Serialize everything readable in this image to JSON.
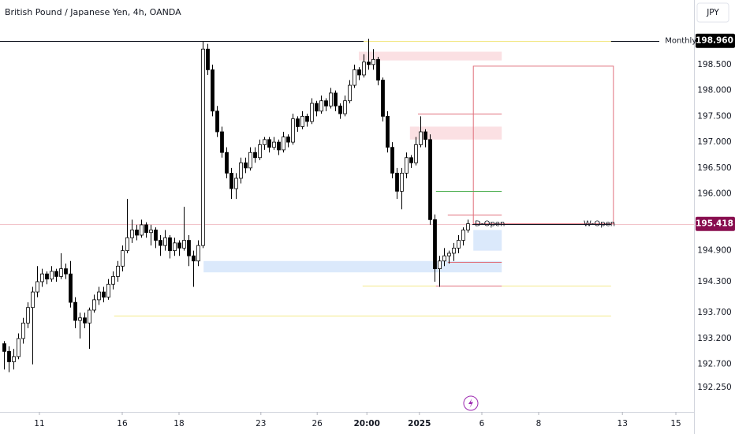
{
  "chart_data": {
    "type": "candlestick",
    "title": "British Pound / Japanese Yen, 4h, OANDA",
    "currency": "JPY",
    "up_color": "#ffffff",
    "down_color": "#000000",
    "wick_color": "#000000",
    "xlim": [
      -0.83,
      145.83
    ],
    "ylim": [
      191.78,
      199.75
    ],
    "xticks": [
      {
        "value": 7.5,
        "label": "11"
      },
      {
        "value": 25,
        "label": "16"
      },
      {
        "value": 37,
        "label": "18"
      },
      {
        "value": 54.3,
        "label": "23"
      },
      {
        "value": 66.2,
        "label": "26"
      },
      {
        "value": 76.7,
        "label": "20:00"
      },
      {
        "value": 87.8,
        "label": "2025"
      },
      {
        "value": 101,
        "label": "6"
      },
      {
        "value": 113,
        "label": "8"
      },
      {
        "value": 130.7,
        "label": "13"
      },
      {
        "value": 142,
        "label": "15"
      }
    ],
    "yticks": [
      {
        "value": 198.5,
        "label": "198.500"
      },
      {
        "value": 198,
        "label": "198.000"
      },
      {
        "value": 197.5,
        "label": "197.500"
      },
      {
        "value": 197,
        "label": "197.000"
      },
      {
        "value": 196.5,
        "label": "196.500"
      },
      {
        "value": 196,
        "label": "196.000"
      },
      {
        "value": 194.9,
        "label": "194.900"
      },
      {
        "value": 194.3,
        "label": "194.300"
      },
      {
        "value": 193.7,
        "label": "193.700"
      },
      {
        "value": 193.2,
        "label": "193.200"
      },
      {
        "value": 192.7,
        "label": "192.700"
      },
      {
        "value": 192.25,
        "label": "192.250"
      }
    ],
    "zones": [
      {
        "range": [
          198.58,
          198.75
        ],
        "x": [
          75,
          105.2
        ],
        "color": "#fbe0e3"
      },
      {
        "range": [
          197.05,
          197.3
        ],
        "x": [
          85.8,
          105.2
        ],
        "color": "#fbe0e3"
      },
      {
        "range": [
          194.48,
          194.7
        ],
        "x": [
          42.2,
          105.2
        ],
        "color": "#dbe9fb"
      },
      {
        "range": [
          194.9,
          195.3
        ],
        "x": [
          99.2,
          105.2
        ],
        "color": "#dbe9fb"
      }
    ],
    "levels": [
      {
        "value": 195.418,
        "x": [
          -0.83,
          145.83
        ],
        "color": "#f2c4ca"
      },
      {
        "value": 198.96,
        "x": [
          -0.83,
          138.5
        ],
        "color": "#131722"
      },
      {
        "value": 198.96,
        "x": [
          76,
          128.3
        ],
        "color": "#f3e98a"
      },
      {
        "value": 193.65,
        "x": [
          23.3,
          128.3
        ],
        "color": "#f3e98a"
      },
      {
        "value": 194.22,
        "x": [
          75.8,
          128.3
        ],
        "color": "#f3e98a"
      },
      {
        "value": 194.22,
        "x": [
          91.3,
          105.2
        ],
        "color": "#e0707c"
      },
      {
        "value": 196.05,
        "x": [
          91.3,
          105.2
        ],
        "color": "#4caf50"
      },
      {
        "value": 197.55,
        "x": [
          87.5,
          105.2
        ],
        "color": "#e0707c"
      },
      {
        "value": 195.6,
        "x": [
          93.8,
          105.2
        ],
        "color": "#e0707c"
      },
      {
        "value": 194.68,
        "x": [
          93.8,
          105.2
        ],
        "color": "#e0707c"
      },
      {
        "value": 195.418,
        "x": [
          99,
          128.3
        ],
        "color": "#131722"
      }
    ],
    "boxes": [
      {
        "range": [
          195.42,
          198.47
        ],
        "x": [
          99.2,
          128.8
        ],
        "color": "#e0707c"
      }
    ],
    "annotations": [
      {
        "text": "Monthly",
        "value": 198.96,
        "x": 139.7,
        "color": "#089981"
      },
      {
        "text": "D-Open",
        "value": 195.418,
        "x": 99.5,
        "color": "#131722"
      },
      {
        "text": "W-Open",
        "value": 195.418,
        "x": 122.5,
        "color": "#131722"
      }
    ],
    "badges": [
      {
        "value": 198.96,
        "label": "198.960",
        "color": "#000000"
      },
      {
        "value": 195.418,
        "label": "195.418",
        "color": "#880e4f"
      }
    ],
    "candles": [
      [
        193.1,
        193.15,
        192.6,
        192.95
      ],
      [
        192.95,
        193.05,
        192.55,
        192.75
      ],
      [
        192.75,
        193.0,
        192.6,
        192.85
      ],
      [
        192.85,
        193.3,
        192.8,
        193.2
      ],
      [
        193.2,
        193.6,
        193.1,
        193.5
      ],
      [
        193.5,
        193.9,
        193.4,
        193.8
      ],
      [
        193.8,
        194.2,
        192.7,
        194.1
      ],
      [
        194.1,
        194.6,
        194.0,
        194.3
      ],
      [
        194.3,
        194.55,
        194.2,
        194.45
      ],
      [
        194.45,
        194.5,
        194.25,
        194.35
      ],
      [
        194.35,
        194.6,
        194.3,
        194.5
      ],
      [
        194.5,
        194.55,
        194.3,
        194.4
      ],
      [
        194.4,
        194.85,
        194.35,
        194.55
      ],
      [
        194.55,
        194.65,
        194.35,
        194.45
      ],
      [
        194.45,
        194.7,
        193.8,
        193.9
      ],
      [
        193.9,
        194.0,
        193.4,
        193.55
      ],
      [
        193.55,
        193.7,
        193.2,
        193.6
      ],
      [
        193.6,
        193.7,
        193.4,
        193.5
      ],
      [
        193.5,
        193.8,
        193.0,
        193.75
      ],
      [
        193.75,
        194.05,
        193.7,
        193.95
      ],
      [
        193.95,
        194.2,
        193.85,
        194.1
      ],
      [
        194.1,
        194.2,
        193.9,
        194.0
      ],
      [
        194.0,
        194.35,
        193.95,
        194.25
      ],
      [
        194.25,
        194.5,
        194.15,
        194.4
      ],
      [
        194.4,
        194.7,
        194.3,
        194.6
      ],
      [
        194.6,
        195.0,
        194.5,
        194.9
      ],
      [
        194.9,
        195.9,
        194.85,
        195.15
      ],
      [
        195.15,
        195.5,
        195.05,
        195.3
      ],
      [
        195.3,
        195.4,
        195.1,
        195.2
      ],
      [
        195.2,
        195.5,
        195.15,
        195.4
      ],
      [
        195.4,
        195.45,
        195.15,
        195.25
      ],
      [
        195.25,
        195.4,
        195.0,
        195.3
      ],
      [
        195.3,
        195.35,
        194.95,
        195.1
      ],
      [
        195.1,
        195.2,
        194.8,
        195.0
      ],
      [
        195.0,
        195.3,
        194.9,
        195.15
      ],
      [
        195.15,
        195.2,
        194.75,
        194.9
      ],
      [
        194.9,
        195.15,
        194.8,
        195.05
      ],
      [
        195.05,
        195.1,
        194.8,
        194.95
      ],
      [
        194.95,
        195.75,
        194.9,
        195.1
      ],
      [
        195.1,
        195.2,
        194.6,
        194.8
      ],
      [
        194.8,
        194.9,
        194.2,
        194.7
      ],
      [
        194.7,
        195.1,
        194.6,
        195.0
      ],
      [
        195.0,
        198.95,
        194.95,
        198.8
      ],
      [
        198.8,
        198.9,
        198.3,
        198.4
      ],
      [
        198.4,
        198.5,
        197.5,
        197.6
      ],
      [
        197.6,
        197.7,
        197.1,
        197.2
      ],
      [
        197.2,
        197.3,
        196.7,
        196.8
      ],
      [
        196.8,
        196.9,
        196.3,
        196.4
      ],
      [
        196.4,
        196.5,
        195.9,
        196.1
      ],
      [
        196.1,
        196.4,
        195.9,
        196.3
      ],
      [
        196.3,
        196.7,
        196.2,
        196.6
      ],
      [
        196.6,
        196.7,
        196.4,
        196.5
      ],
      [
        196.5,
        196.9,
        196.45,
        196.8
      ],
      [
        196.8,
        196.9,
        196.6,
        196.7
      ],
      [
        196.7,
        197.05,
        196.65,
        196.95
      ],
      [
        196.95,
        197.1,
        196.85,
        197.05
      ],
      [
        197.05,
        197.1,
        196.8,
        196.9
      ],
      [
        196.9,
        197.1,
        196.85,
        197.0
      ],
      [
        197.0,
        197.05,
        196.75,
        196.85
      ],
      [
        196.85,
        197.2,
        196.8,
        197.1
      ],
      [
        197.1,
        197.15,
        196.9,
        197.0
      ],
      [
        197.0,
        197.55,
        196.95,
        197.45
      ],
      [
        197.45,
        197.5,
        197.2,
        197.3
      ],
      [
        197.3,
        197.6,
        197.25,
        197.5
      ],
      [
        197.5,
        197.55,
        197.3,
        197.4
      ],
      [
        197.4,
        197.85,
        197.35,
        197.75
      ],
      [
        197.75,
        197.8,
        197.5,
        197.6
      ],
      [
        197.6,
        197.9,
        197.55,
        197.8
      ],
      [
        197.8,
        197.85,
        197.6,
        197.7
      ],
      [
        197.7,
        198.05,
        197.65,
        197.95
      ],
      [
        197.95,
        198.0,
        197.6,
        197.7
      ],
      [
        197.7,
        197.75,
        197.45,
        197.55
      ],
      [
        197.55,
        197.9,
        197.5,
        197.8
      ],
      [
        197.8,
        198.2,
        197.75,
        198.1
      ],
      [
        198.1,
        198.5,
        198.05,
        198.4
      ],
      [
        198.4,
        198.45,
        198.2,
        198.3
      ],
      [
        198.3,
        198.7,
        198.25,
        198.55
      ],
      [
        198.55,
        199.0,
        198.4,
        198.5
      ],
      [
        198.5,
        198.8,
        198.4,
        198.6
      ],
      [
        198.6,
        198.65,
        198.1,
        198.2
      ],
      [
        198.2,
        198.25,
        197.4,
        197.5
      ],
      [
        197.5,
        197.6,
        196.8,
        196.9
      ],
      [
        196.9,
        197.0,
        196.3,
        196.4
      ],
      [
        196.4,
        196.5,
        195.9,
        196.05
      ],
      [
        196.05,
        196.5,
        195.7,
        196.4
      ],
      [
        196.4,
        196.8,
        196.3,
        196.7
      ],
      [
        196.7,
        196.75,
        196.5,
        196.6
      ],
      [
        196.6,
        197.1,
        196.55,
        196.95
      ],
      [
        196.95,
        197.5,
        196.9,
        197.2
      ],
      [
        197.2,
        197.25,
        196.9,
        197.05
      ],
      [
        197.05,
        197.15,
        195.4,
        195.5
      ],
      [
        195.5,
        195.6,
        194.3,
        194.55
      ],
      [
        194.55,
        194.8,
        194.2,
        194.7
      ],
      [
        194.7,
        194.95,
        194.6,
        194.8
      ],
      [
        194.8,
        194.9,
        194.65,
        194.85
      ],
      [
        194.85,
        195.05,
        194.7,
        194.95
      ],
      [
        194.95,
        195.2,
        194.85,
        195.1
      ],
      [
        195.1,
        195.35,
        195.0,
        195.3
      ],
      [
        195.3,
        195.5,
        195.25,
        195.42
      ]
    ]
  }
}
